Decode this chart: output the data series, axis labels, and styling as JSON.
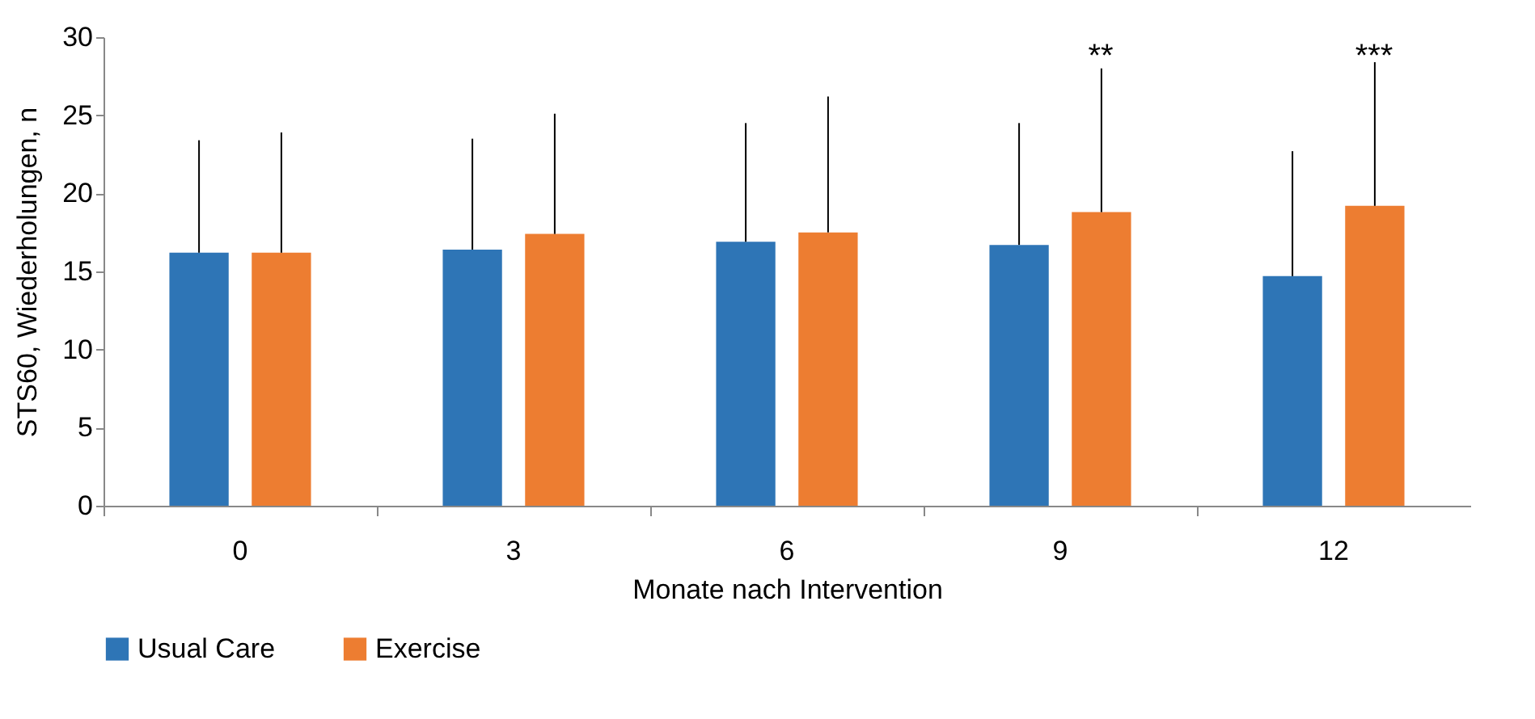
{
  "chart_data": {
    "type": "bar",
    "xlabel": "Monate nach Intervention",
    "ylabel": "STS60, Wiederholungen, n",
    "categories": [
      "0",
      "3",
      "6",
      "9",
      "12"
    ],
    "series": [
      {
        "name": "Usual Care",
        "color": "#2e75b6",
        "values": [
          16.2,
          16.4,
          16.9,
          16.7,
          14.7
        ],
        "errors": [
          [
            16.2,
            23.4
          ],
          [
            16.4,
            23.5
          ],
          [
            16.9,
            24.5
          ],
          [
            16.7,
            24.5
          ],
          [
            14.7,
            22.7
          ]
        ]
      },
      {
        "name": "Exercise",
        "color": "#ed7d31",
        "values": [
          16.2,
          17.4,
          17.5,
          18.8,
          19.2
        ],
        "errors": [
          [
            16.2,
            23.9
          ],
          [
            17.4,
            25.1
          ],
          [
            17.5,
            26.2
          ],
          [
            18.8,
            28.0
          ],
          [
            19.2,
            28.4
          ]
        ]
      }
    ],
    "annotations": [
      "**",
      "***"
    ],
    "ylim": [
      0,
      30
    ],
    "yticks": [
      0,
      5,
      10,
      15,
      20,
      25,
      30
    ],
    "grid": false,
    "legend": "bottom"
  }
}
